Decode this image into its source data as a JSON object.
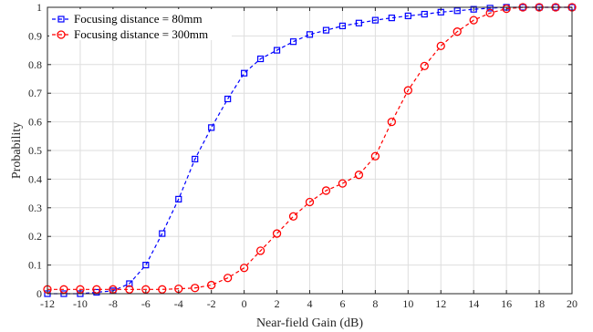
{
  "chart_data": {
    "type": "line",
    "xlabel": "Near-field Gain (dB)",
    "ylabel": "Probability",
    "xlim": [
      -12,
      20
    ],
    "ylim": [
      0,
      1
    ],
    "x_ticks": [
      -12,
      -10,
      -8,
      -6,
      -4,
      -2,
      0,
      2,
      4,
      6,
      8,
      10,
      12,
      14,
      16,
      18,
      20
    ],
    "x_tick_labels": [
      "-12",
      "-10",
      "-8",
      "-6",
      "-4",
      "-2",
      "0",
      "2",
      "4",
      "6",
      "8",
      "10",
      "12",
      "14",
      "16",
      "18",
      "20"
    ],
    "y_ticks": [
      0,
      0.1,
      0.2,
      0.3,
      0.4,
      0.5,
      0.6,
      0.7,
      0.8,
      0.9,
      1
    ],
    "y_tick_labels": [
      "0",
      "0.1",
      "0.2",
      "0.3",
      "0.4",
      "0.5",
      "0.6",
      "0.7",
      "0.8",
      "0.9",
      "1"
    ],
    "grid": true,
    "legend_position": "top-left",
    "x": [
      -12,
      -11,
      -10,
      -9,
      -8,
      -7,
      -6,
      -5,
      -4,
      -3,
      -2,
      -1,
      0,
      1,
      2,
      3,
      4,
      5,
      6,
      7,
      8,
      9,
      10,
      11,
      12,
      13,
      14,
      15,
      16,
      17,
      18,
      19,
      20
    ],
    "series": [
      {
        "name": "Focusing distance = 80mm",
        "color": "#0000ff",
        "marker": "square",
        "values": [
          0.0,
          0.0,
          0.0,
          0.005,
          0.01,
          0.035,
          0.1,
          0.21,
          0.33,
          0.47,
          0.58,
          0.68,
          0.77,
          0.82,
          0.85,
          0.88,
          0.905,
          0.92,
          0.935,
          0.945,
          0.955,
          0.963,
          0.97,
          0.976,
          0.983,
          0.988,
          0.993,
          0.997,
          1.0,
          1.0,
          1.0,
          1.0,
          1.0
        ]
      },
      {
        "name": "Focusing distance = 300mm",
        "color": "#ff0000",
        "marker": "circle",
        "values": [
          0.015,
          0.015,
          0.015,
          0.015,
          0.015,
          0.015,
          0.015,
          0.015,
          0.017,
          0.02,
          0.03,
          0.055,
          0.09,
          0.15,
          0.21,
          0.27,
          0.32,
          0.36,
          0.385,
          0.415,
          0.48,
          0.6,
          0.71,
          0.795,
          0.865,
          0.915,
          0.955,
          0.98,
          0.995,
          1.0,
          1.0,
          1.0,
          1.0
        ]
      }
    ]
  }
}
